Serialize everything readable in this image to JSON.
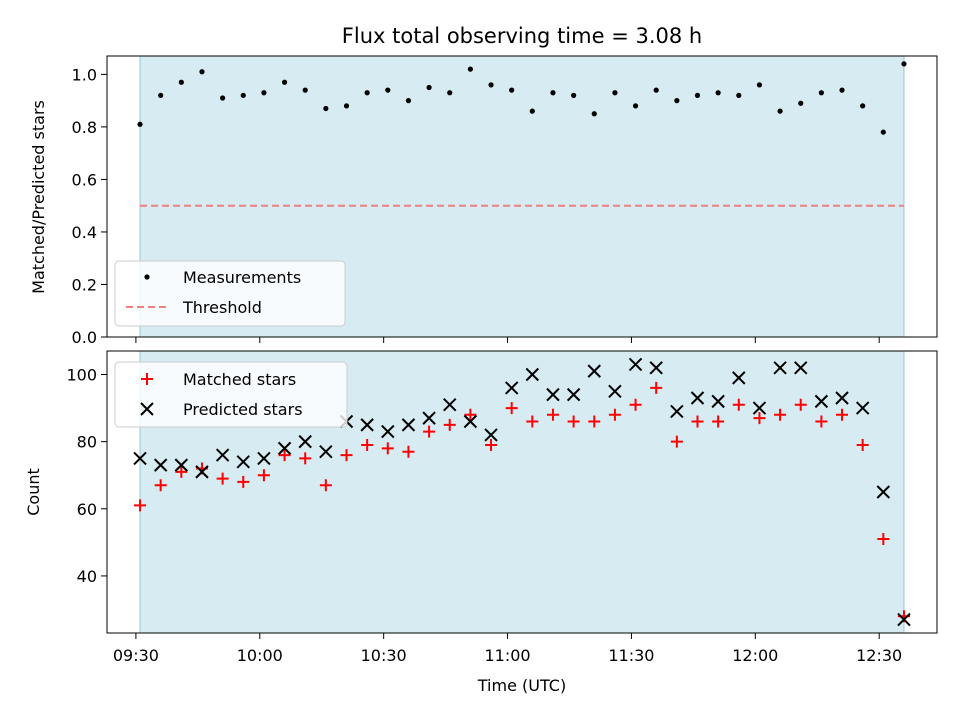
{
  "chart_data": [
    {
      "type": "scatter",
      "title": "Flux total observing time = 3.08 h",
      "xlabel": "",
      "ylabel": "Matched/Predicted stars",
      "ylim": [
        0,
        1.07
      ],
      "yticks": [
        0.0,
        0.2,
        0.4,
        0.6,
        0.8,
        1.0
      ],
      "ytick_labels": [
        "0.0",
        "0.2",
        "0.4",
        "0.6",
        "0.8",
        "1.0"
      ],
      "legend_position": "lower-left",
      "shaded_span": {
        "start": "09:31",
        "end": "12:36",
        "color": "#add8e6"
      },
      "series": [
        {
          "name": "Measurements",
          "marker": "dot",
          "color": "#000000",
          "x": [
            "09:31",
            "09:36",
            "09:41",
            "09:46",
            "09:51",
            "09:56",
            "10:01",
            "10:06",
            "10:11",
            "10:16",
            "10:21",
            "10:26",
            "10:31",
            "10:36",
            "10:41",
            "10:46",
            "10:51",
            "10:56",
            "11:01",
            "11:06",
            "11:11",
            "11:16",
            "11:21",
            "11:26",
            "11:31",
            "11:36",
            "11:41",
            "11:46",
            "11:51",
            "11:56",
            "12:01",
            "12:06",
            "12:11",
            "12:16",
            "12:21",
            "12:26",
            "12:31",
            "12:36"
          ],
          "y": [
            0.81,
            0.92,
            0.97,
            1.01,
            0.91,
            0.92,
            0.93,
            0.97,
            0.94,
            0.87,
            0.88,
            0.93,
            0.94,
            0.9,
            0.95,
            0.93,
            1.02,
            0.96,
            0.94,
            0.86,
            0.93,
            0.92,
            0.85,
            0.93,
            0.88,
            0.94,
            0.9,
            0.92,
            0.93,
            0.92,
            0.96,
            0.86,
            0.89,
            0.93,
            0.94,
            0.88,
            0.78,
            1.04
          ]
        },
        {
          "name": "Threshold",
          "marker": "dashed-line",
          "color": "#f08080",
          "y_value": 0.5
        }
      ]
    },
    {
      "type": "scatter",
      "title": "",
      "xlabel": "Time (UTC)",
      "ylabel": "Count",
      "ylim": [
        23,
        107
      ],
      "yticks": [
        40,
        60,
        80,
        100
      ],
      "ytick_labels": [
        "40",
        "60",
        "80",
        "100"
      ],
      "xticks": [
        "09:30",
        "10:00",
        "10:30",
        "11:00",
        "11:30",
        "12:00",
        "12:30"
      ],
      "xlim": [
        "09:23",
        "12:44"
      ],
      "legend_position": "upper-left",
      "shaded_span": {
        "start": "09:31",
        "end": "12:36",
        "color": "#add8e6"
      },
      "x": [
        "09:31",
        "09:36",
        "09:41",
        "09:46",
        "09:51",
        "09:56",
        "10:01",
        "10:06",
        "10:11",
        "10:16",
        "10:21",
        "10:26",
        "10:31",
        "10:36",
        "10:41",
        "10:46",
        "10:51",
        "10:56",
        "11:01",
        "11:06",
        "11:11",
        "11:16",
        "11:21",
        "11:26",
        "11:31",
        "11:36",
        "11:41",
        "11:46",
        "11:51",
        "11:56",
        "12:01",
        "12:06",
        "12:11",
        "12:16",
        "12:21",
        "12:26",
        "12:31",
        "12:36"
      ],
      "series": [
        {
          "name": "Matched stars",
          "marker": "plus",
          "color": "#ff0000",
          "values": [
            61,
            67,
            71,
            72,
            69,
            68,
            70,
            76,
            75,
            67,
            76,
            79,
            78,
            77,
            83,
            85,
            88,
            79,
            90,
            86,
            88,
            86,
            86,
            88,
            91,
            96,
            80,
            86,
            86,
            91,
            87,
            88,
            91,
            86,
            88,
            79,
            51,
            28
          ]
        },
        {
          "name": "Predicted stars",
          "marker": "x",
          "color": "#000000",
          "values": [
            75,
            73,
            73,
            71,
            76,
            74,
            75,
            78,
            80,
            77,
            86,
            85,
            83,
            85,
            87,
            91,
            86,
            82,
            96,
            100,
            94,
            94,
            101,
            95,
            103,
            102,
            89,
            93,
            92,
            99,
            90,
            102,
            102,
            92,
            93,
            90,
            65,
            27
          ]
        }
      ]
    }
  ]
}
